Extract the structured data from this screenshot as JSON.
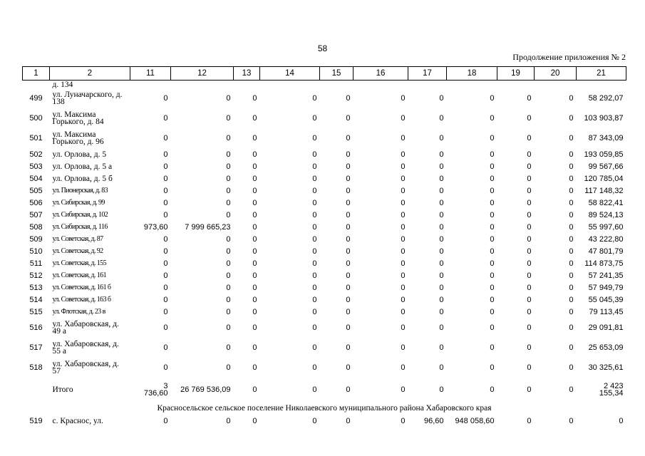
{
  "page_number": "58",
  "appendix_note": "Продолжение приложения № 2",
  "columns": [
    "1",
    "2",
    "11",
    "12",
    "13",
    "14",
    "15",
    "16",
    "17",
    "18",
    "19",
    "20",
    "21"
  ],
  "top_fragment": "д. 134",
  "rows": [
    {
      "num": "499",
      "addr": "ул. Луначарского, д. 138",
      "cond": false,
      "v": [
        "0",
        "0",
        "0",
        "0",
        "0",
        "0",
        "0",
        "0",
        "0",
        "0",
        "58 292,07"
      ]
    },
    {
      "num": "500",
      "addr": "ул. Максима Горького, д. 84",
      "cond": false,
      "v": [
        "0",
        "0",
        "0",
        "0",
        "0",
        "0",
        "0",
        "0",
        "0",
        "0",
        "103 903,87"
      ]
    },
    {
      "num": "501",
      "addr": "ул. Максима Горького, д. 96",
      "cond": false,
      "v": [
        "0",
        "0",
        "0",
        "0",
        "0",
        "0",
        "0",
        "0",
        "0",
        "0",
        "87 343,09"
      ]
    },
    {
      "num": "502",
      "addr": "ул. Орлова, д. 5",
      "cond": false,
      "v": [
        "0",
        "0",
        "0",
        "0",
        "0",
        "0",
        "0",
        "0",
        "0",
        "0",
        "193 059,85"
      ]
    },
    {
      "num": "503",
      "addr": "ул. Орлова, д. 5 а",
      "cond": false,
      "v": [
        "0",
        "0",
        "0",
        "0",
        "0",
        "0",
        "0",
        "0",
        "0",
        "0",
        "99 567,66"
      ]
    },
    {
      "num": "504",
      "addr": "ул. Орлова, д. 5 б",
      "cond": false,
      "v": [
        "0",
        "0",
        "0",
        "0",
        "0",
        "0",
        "0",
        "0",
        "0",
        "0",
        "120 785,04"
      ]
    },
    {
      "num": "505",
      "addr": "ул. Пионерская, д. 83",
      "cond": true,
      "v": [
        "0",
        "0",
        "0",
        "0",
        "0",
        "0",
        "0",
        "0",
        "0",
        "0",
        "117 148,32"
      ]
    },
    {
      "num": "506",
      "addr": "ул. Сибирская, д. 99",
      "cond": true,
      "v": [
        "0",
        "0",
        "0",
        "0",
        "0",
        "0",
        "0",
        "0",
        "0",
        "0",
        "58 822,41"
      ]
    },
    {
      "num": "507",
      "addr": "ул. Сибирская, д. 102",
      "cond": true,
      "v": [
        "0",
        "0",
        "0",
        "0",
        "0",
        "0",
        "0",
        "0",
        "0",
        "0",
        "89 524,13"
      ]
    },
    {
      "num": "508",
      "addr": "ул. Сибирская, д. 116",
      "cond": true,
      "v": [
        "973,60",
        "7 999 665,23",
        "0",
        "0",
        "0",
        "0",
        "0",
        "0",
        "0",
        "0",
        "55 997,60"
      ]
    },
    {
      "num": "509",
      "addr": "ул. Советская, д. 87",
      "cond": true,
      "v": [
        "0",
        "0",
        "0",
        "0",
        "0",
        "0",
        "0",
        "0",
        "0",
        "0",
        "43 222,80"
      ]
    },
    {
      "num": "510",
      "addr": "ул. Советская, д. 92",
      "cond": true,
      "v": [
        "0",
        "0",
        "0",
        "0",
        "0",
        "0",
        "0",
        "0",
        "0",
        "0",
        "47 801,79"
      ]
    },
    {
      "num": "511",
      "addr": "ул. Советская, д. 155",
      "cond": true,
      "v": [
        "0",
        "0",
        "0",
        "0",
        "0",
        "0",
        "0",
        "0",
        "0",
        "0",
        "114 873,75"
      ]
    },
    {
      "num": "512",
      "addr": "ул. Советская, д. 161",
      "cond": true,
      "v": [
        "0",
        "0",
        "0",
        "0",
        "0",
        "0",
        "0",
        "0",
        "0",
        "0",
        "57 241,35"
      ]
    },
    {
      "num": "513",
      "addr": "ул. Советская, д. 161 б",
      "cond": true,
      "v": [
        "0",
        "0",
        "0",
        "0",
        "0",
        "0",
        "0",
        "0",
        "0",
        "0",
        "57 949,79"
      ]
    },
    {
      "num": "514",
      "addr": "ул. Советская, д. 163 б",
      "cond": true,
      "v": [
        "0",
        "0",
        "0",
        "0",
        "0",
        "0",
        "0",
        "0",
        "0",
        "0",
        "55 045,39"
      ]
    },
    {
      "num": "515",
      "addr": "ул. Флотская, д. 23 в",
      "cond": true,
      "v": [
        "0",
        "0",
        "0",
        "0",
        "0",
        "0",
        "0",
        "0",
        "0",
        "0",
        "79 113,45"
      ]
    },
    {
      "num": "516",
      "addr": "ул. Хабаровская, д. 49 а",
      "cond": false,
      "v": [
        "0",
        "0",
        "0",
        "0",
        "0",
        "0",
        "0",
        "0",
        "0",
        "0",
        "29 091,81"
      ]
    },
    {
      "num": "517",
      "addr": "ул. Хабаровская, д. 55 а",
      "cond": false,
      "v": [
        "0",
        "0",
        "0",
        "0",
        "0",
        "0",
        "0",
        "0",
        "0",
        "0",
        "25 653,09"
      ]
    },
    {
      "num": "518",
      "addr": "ул. Хабаровская, д. 57",
      "cond": false,
      "v": [
        "0",
        "0",
        "0",
        "0",
        "0",
        "0",
        "0",
        "0",
        "0",
        "0",
        "30 325,61"
      ]
    }
  ],
  "total": {
    "label": "Итого",
    "col11_top": "3",
    "col11_bottom": "736,60",
    "col12": "26 769 536,09",
    "zeros": [
      "0",
      "0",
      "0",
      "0",
      "0",
      "0",
      "0",
      "0"
    ],
    "col21_top": "2 423",
    "col21_bottom": "155,34"
  },
  "section_title": "Красносельское сельское поселение Николаевского муниципального района Хабаровского края",
  "last_row": {
    "num": "519",
    "addr": "с. Краснос, ул.",
    "v": [
      "0",
      "0",
      "0",
      "0",
      "0",
      "0",
      "96,60",
      "948 058,60",
      "0",
      "0",
      "0"
    ]
  }
}
